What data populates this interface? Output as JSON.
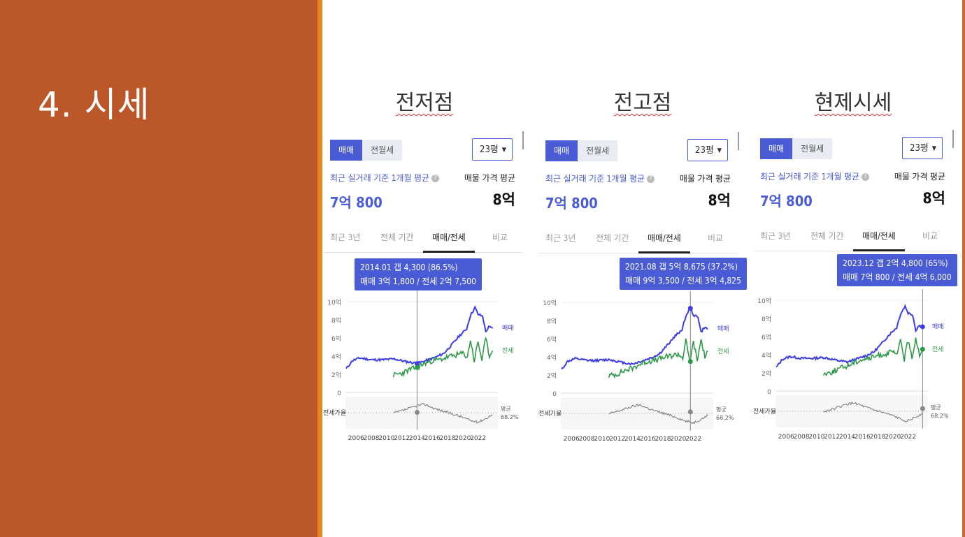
{
  "slide": {
    "title": "4. 시세"
  },
  "colors": {
    "left_bg": "#BC572A",
    "stripe": "#E5891E",
    "buy": "#3d3de6",
    "jeonse": "#2e9a48",
    "ratio": "#777777",
    "tooltip": "#4a5bd6"
  },
  "panels": [
    {
      "title": "전저점",
      "tabs_top": [
        "매매",
        "전월세"
      ],
      "size_select": "23평",
      "recent_label": "최근 실거래 기준 1개월 평균",
      "recent_value": "7억 800",
      "ask_label": "매물 가격 평균",
      "ask_value": "8억",
      "period_tabs": [
        "최근 3년",
        "전체 기간",
        "매매/전세",
        "비교"
      ],
      "active_tab_index": 2,
      "tooltip": {
        "line1": "2014.01  갭 4,300 (86.5%)",
        "line2": "매매 3억 1,800 / 전세 2억 7,500"
      },
      "cursor_year": 2014.0,
      "cursor_buy": 3.18,
      "cursor_jeonse": 2.75
    },
    {
      "title": "전고점",
      "tabs_top": [
        "매매",
        "전월세"
      ],
      "size_select": "23평",
      "recent_label": "최근 실거래 기준 1개월 평균",
      "recent_value": "7억 800",
      "ask_label": "매물 가격 평균",
      "ask_value": "8억",
      "period_tabs": [
        "최근 3년",
        "전체 기간",
        "매매/전세",
        "비교"
      ],
      "active_tab_index": 2,
      "tooltip": {
        "line1": "2021.08  갭 5억 8,675 (37.2%)",
        "line2": "매매 9억 3,500 / 전세 3억 4,825"
      },
      "cursor_year": 2021.6,
      "cursor_buy": 9.35,
      "cursor_jeonse": 3.48
    },
    {
      "title": "현제시세",
      "tabs_top": [
        "매매",
        "전월세"
      ],
      "size_select": "23평",
      "recent_label": "최근 실거래 기준 1개월 평균",
      "recent_value": "7억 800",
      "ask_label": "매물 가격 평균",
      "ask_value": "8억",
      "period_tabs": [
        "최근 3년",
        "전체 기간",
        "매매/전세",
        "비교"
      ],
      "active_tab_index": 2,
      "tooltip": {
        "line1": "2023.12  갭 2억 4,800 (65%)",
        "line2": "매매 7억 800 / 전세 4억 6,000"
      },
      "cursor_year": 2023.9,
      "cursor_buy": 7.08,
      "cursor_jeonse": 4.6
    }
  ],
  "chart_data": [
    {
      "type": "line",
      "x_label_ticks": [
        "2006",
        "2008",
        "2010",
        "2012",
        "2014",
        "2016",
        "2018",
        "2020",
        "2022"
      ],
      "y_label_ticks": [
        "10억",
        "8억",
        "6억",
        "4억",
        "2억",
        "0"
      ],
      "ylim": [
        0,
        10
      ],
      "ratio_label": "전세가율",
      "avg_label": "평균",
      "avg_value": "68.2%",
      "series": [
        {
          "name": "매매",
          "x": [
            2004.7,
            2005.5,
            2006.5,
            2008.0,
            2009.5,
            2011.0,
            2012.5,
            2014.0,
            2015.5,
            2016.5,
            2017.5,
            2018.5,
            2019.5,
            2020.5,
            2021.0,
            2021.6,
            2022.0,
            2022.6,
            2023.0,
            2023.4,
            2023.9
          ],
          "y": [
            2.6,
            3.5,
            3.8,
            3.6,
            3.6,
            3.7,
            3.4,
            3.2,
            3.6,
            3.9,
            4.3,
            5.2,
            6.2,
            7.0,
            8.5,
            9.35,
            8.6,
            8.4,
            6.7,
            7.2,
            7.08
          ]
        },
        {
          "name": "전세",
          "x": [
            2010.9,
            2012.0,
            2013.0,
            2014.0,
            2015.0,
            2016.0,
            2017.0,
            2018.0,
            2019.0,
            2020.0,
            2020.6,
            2021.0,
            2021.5,
            2022.0,
            2022.5,
            2023.0,
            2023.5,
            2023.9
          ],
          "y": [
            1.9,
            2.1,
            2.5,
            2.75,
            3.2,
            3.5,
            3.6,
            3.9,
            4.1,
            4.3,
            3.9,
            5.8,
            3.5,
            5.6,
            3.6,
            5.9,
            4.0,
            4.6
          ]
        },
        {
          "name": "전세가율",
          "x": [
            2010.9,
            2012.0,
            2013.0,
            2014.0,
            2015.0,
            2016.0,
            2017.0,
            2018.0,
            2019.0,
            2020.0,
            2021.0,
            2022.0,
            2023.0,
            2023.9
          ],
          "y": [
            68,
            74,
            80,
            86.5,
            90,
            82,
            75,
            70,
            64,
            58,
            50,
            46,
            55,
            65
          ]
        }
      ]
    }
  ]
}
